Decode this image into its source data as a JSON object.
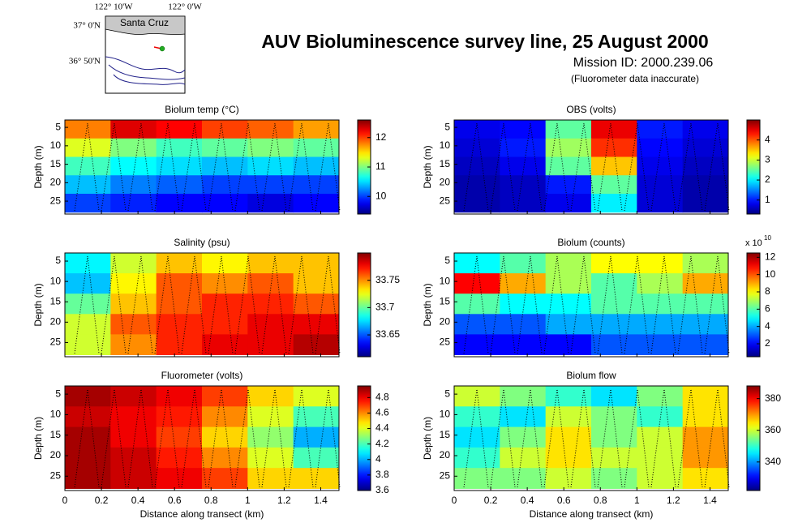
{
  "title": "AUV Bioluminescence survey line, 25 August 2000",
  "subtitle": "Mission ID: 2000.239.06",
  "note": "(Fluorometer data inaccurate)",
  "map": {
    "place": "Santa Cruz",
    "lon_labels": [
      "122° 10'W",
      "122° 0'W"
    ],
    "lat_labels": [
      "37° 0'N",
      "36° 50'N"
    ]
  },
  "chart_data": [
    {
      "type": "heatmap",
      "title": "Biolum temp (°C)",
      "ylabel": "Depth (m)",
      "colormap": "jet",
      "show_xtick_labels": false,
      "x": [
        0.125,
        0.375,
        0.625,
        0.875,
        1.125,
        1.375
      ],
      "y": [
        5.5,
        10.5,
        15.5,
        20.5,
        25.5
      ],
      "values": [
        [
          11.8,
          12.3,
          12.2,
          12.0,
          11.9,
          11.7
        ],
        [
          11.3,
          11.0,
          10.8,
          10.9,
          11.0,
          10.9
        ],
        [
          10.8,
          10.6,
          10.5,
          10.4,
          10.5,
          10.4
        ],
        [
          10.4,
          10.2,
          10.1,
          10.0,
          10.0,
          10.0
        ],
        [
          10.0,
          9.9,
          9.8,
          9.8,
          9.7,
          9.8
        ]
      ],
      "xlim": [
        0,
        1.5
      ],
      "xticks": [
        0,
        0.2,
        0.4,
        0.6,
        0.8,
        1,
        1.2,
        1.4
      ],
      "ylim": [
        3,
        28.5
      ],
      "yticks": [
        5,
        10,
        15,
        20,
        25
      ],
      "clim": [
        9.4,
        12.6
      ],
      "cticks": [
        10,
        11,
        12
      ]
    },
    {
      "type": "heatmap",
      "title": "OBS (volts)",
      "ylabel": "Depth (m)",
      "colormap": "jet",
      "show_xtick_labels": false,
      "x": [
        0.125,
        0.375,
        0.625,
        0.875,
        1.125,
        1.375
      ],
      "y": [
        5.5,
        10.5,
        15.5,
        20.5,
        25.5
      ],
      "values": [
        [
          0.8,
          0.9,
          2.5,
          4.5,
          1.0,
          0.8
        ],
        [
          0.7,
          1.0,
          2.8,
          4.2,
          0.9,
          0.7
        ],
        [
          0.6,
          0.8,
          2.5,
          3.5,
          0.8,
          0.6
        ],
        [
          0.5,
          0.6,
          1.0,
          2.5,
          0.7,
          0.5
        ],
        [
          0.5,
          0.6,
          0.8,
          2.0,
          0.7,
          0.5
        ]
      ],
      "xlim": [
        0,
        1.5
      ],
      "xticks": [
        0,
        0.2,
        0.4,
        0.6,
        0.8,
        1,
        1.2,
        1.4
      ],
      "ylim": [
        3,
        28.5
      ],
      "yticks": [
        5,
        10,
        15,
        20,
        25
      ],
      "clim": [
        0.3,
        5
      ],
      "cticks": [
        1,
        2,
        3,
        4
      ]
    },
    {
      "type": "heatmap",
      "title": "Salinity (psu)",
      "ylabel": "Depth (m)",
      "colormap": "jet",
      "show_xtick_labels": false,
      "x": [
        0.125,
        0.375,
        0.625,
        0.875,
        1.125,
        1.375
      ],
      "y": [
        5.5,
        10.5,
        15.5,
        20.5,
        25.5
      ],
      "values": [
        [
          33.68,
          33.72,
          33.74,
          33.73,
          33.74,
          33.74
        ],
        [
          33.67,
          33.73,
          33.76,
          33.75,
          33.76,
          33.74
        ],
        [
          33.7,
          33.74,
          33.76,
          33.77,
          33.77,
          33.76
        ],
        [
          33.72,
          33.76,
          33.77,
          33.77,
          33.78,
          33.78
        ],
        [
          33.72,
          33.75,
          33.77,
          33.78,
          33.78,
          33.79
        ]
      ],
      "xlim": [
        0,
        1.5
      ],
      "xticks": [
        0,
        0.2,
        0.4,
        0.6,
        0.8,
        1,
        1.2,
        1.4
      ],
      "ylim": [
        3,
        28.5
      ],
      "yticks": [
        5,
        10,
        15,
        20,
        25
      ],
      "clim": [
        33.61,
        33.8
      ],
      "cticks": [
        33.65,
        33.7,
        33.75
      ]
    },
    {
      "type": "heatmap",
      "title": "Biolum (counts)",
      "ylabel": "Depth (m)",
      "colormap": "jet",
      "show_xtick_labels": false,
      "colorbar_multiplier": {
        "text": "x 10",
        "exponent": "10"
      },
      "x": [
        0.125,
        0.375,
        0.625,
        0.875,
        1.125,
        1.375
      ],
      "y": [
        5.5,
        10.5,
        15.5,
        20.5,
        25.5
      ],
      "values": [
        [
          5,
          6,
          7,
          8,
          8,
          7
        ],
        [
          11,
          9,
          7,
          6,
          7,
          9
        ],
        [
          6,
          5,
          5,
          6,
          6,
          6
        ],
        [
          3,
          3,
          4,
          4,
          4,
          4
        ],
        [
          2,
          2,
          2,
          3,
          3,
          3
        ]
      ],
      "xlim": [
        0,
        1.5
      ],
      "xticks": [
        0,
        0.2,
        0.4,
        0.6,
        0.8,
        1,
        1.2,
        1.4
      ],
      "ylim": [
        3,
        28.5
      ],
      "yticks": [
        5,
        10,
        15,
        20,
        25
      ],
      "clim": [
        0.5,
        12.5
      ],
      "cticks": [
        2,
        4,
        6,
        8,
        10,
        12
      ]
    },
    {
      "type": "heatmap",
      "title": "Fluorometer (volts)",
      "ylabel": "Depth (m)",
      "xlabel": "Distance along transect (km)",
      "colormap": "jet",
      "show_xtick_labels": true,
      "x": [
        0.125,
        0.375,
        0.625,
        0.875,
        1.125,
        1.375
      ],
      "y": [
        5.5,
        10.5,
        15.5,
        20.5,
        25.5
      ],
      "values": [
        [
          4.9,
          4.85,
          4.8,
          4.7,
          4.5,
          4.4
        ],
        [
          4.85,
          4.8,
          4.75,
          4.6,
          4.4,
          4.2
        ],
        [
          4.9,
          4.8,
          4.7,
          4.5,
          4.3,
          4.0
        ],
        [
          4.9,
          4.85,
          4.75,
          4.6,
          4.4,
          4.2
        ],
        [
          4.9,
          4.85,
          4.8,
          4.7,
          4.5,
          4.5
        ]
      ],
      "xlim": [
        0,
        1.5
      ],
      "xticks": [
        0,
        0.2,
        0.4,
        0.6,
        0.8,
        1,
        1.2,
        1.4
      ],
      "ylim": [
        3,
        28.5
      ],
      "yticks": [
        5,
        10,
        15,
        20,
        25
      ],
      "clim": [
        3.6,
        4.95
      ],
      "cticks": [
        3.6,
        3.8,
        4,
        4.2,
        4.4,
        4.6,
        4.8
      ]
    },
    {
      "type": "heatmap",
      "title": "Biolum flow",
      "ylabel": "Depth (m)",
      "xlabel": "Distance along transect (km)",
      "colormap": "jet",
      "show_xtick_labels": true,
      "x": [
        0.125,
        0.375,
        0.625,
        0.875,
        1.125,
        1.375
      ],
      "y": [
        5.5,
        10.5,
        15.5,
        20.5,
        25.5
      ],
      "values": [
        [
          360,
          355,
          350,
          345,
          355,
          365
        ],
        [
          350,
          345,
          360,
          355,
          350,
          365
        ],
        [
          345,
          355,
          365,
          355,
          360,
          370
        ],
        [
          350,
          360,
          365,
          360,
          360,
          370
        ],
        [
          355,
          355,
          360,
          355,
          360,
          365
        ]
      ],
      "xlim": [
        0,
        1.5
      ],
      "xticks": [
        0,
        0.2,
        0.4,
        0.6,
        0.8,
        1,
        1.2,
        1.4
      ],
      "ylim": [
        3,
        28.5
      ],
      "yticks": [
        5,
        10,
        15,
        20,
        25
      ],
      "clim": [
        322,
        388
      ],
      "cticks": [
        340,
        360,
        380
      ]
    }
  ]
}
